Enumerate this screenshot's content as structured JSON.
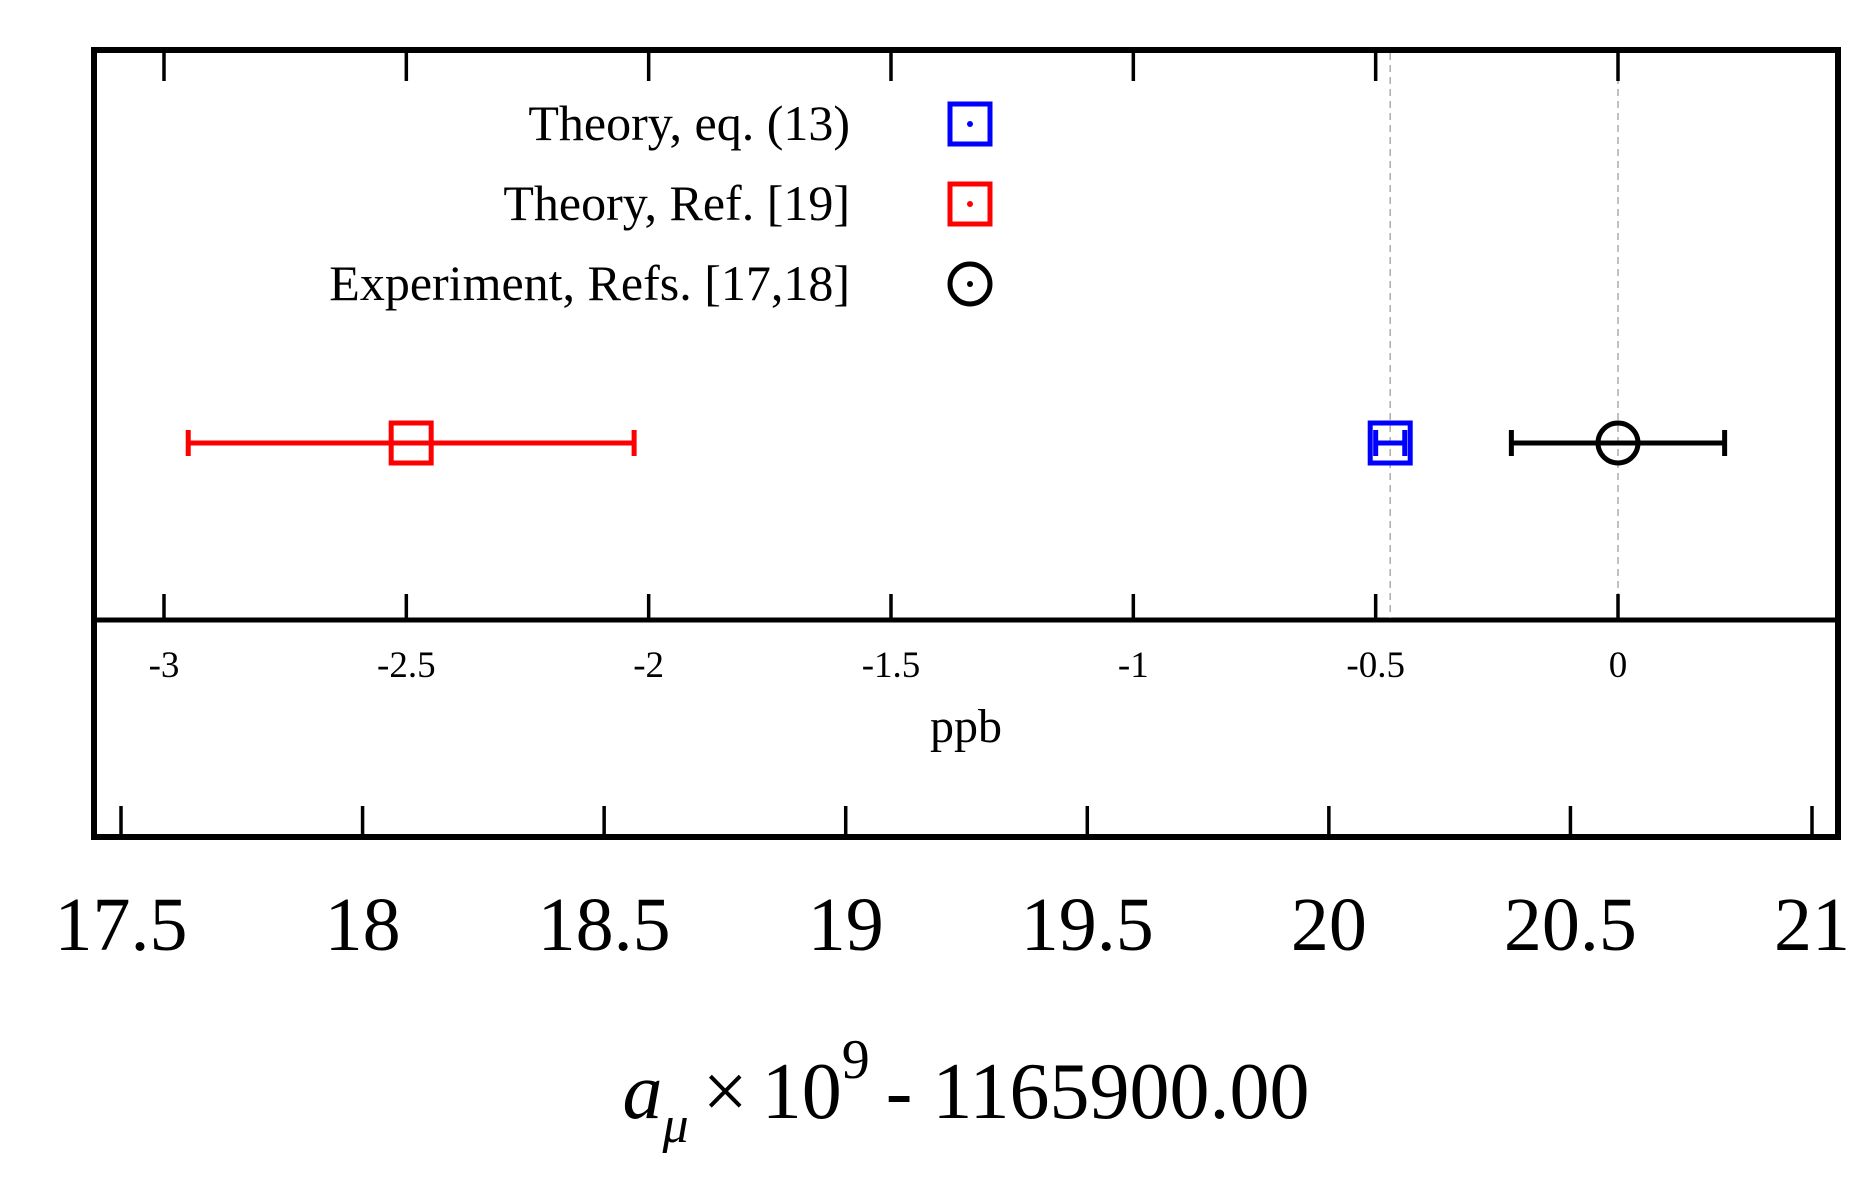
{
  "chart_data": {
    "type": "scatter",
    "orientation": "horizontal error bars",
    "legend_placement": "top-center",
    "grid": false,
    "reference_lines": [
      {
        "x_ppb": -0.47,
        "style": "dashed",
        "color": "#b0b0b0"
      },
      {
        "x_ppb": 0.0,
        "style": "dashed",
        "color": "#b0b0b0"
      }
    ],
    "ppb_axis": {
      "label": "ppb",
      "range": [
        -3.05,
        0.45
      ],
      "ticks": [
        -3,
        -2.5,
        -2,
        -1.5,
        -1,
        -0.5,
        0
      ],
      "tick_labels": [
        "-3",
        "-2.5",
        "-2",
        "-1.5",
        "-1",
        "-0.5",
        "0"
      ]
    },
    "amu_axis": {
      "label_main": "a",
      "label_subscript": "μ",
      "label_times": "×",
      "label_base": "10",
      "label_exponent": "9",
      "label_offset": "- 1165900.00",
      "range": [
        17.44,
        21.06
      ],
      "ticks": [
        17.5,
        18,
        18.5,
        19,
        19.5,
        20,
        20.5,
        21
      ],
      "tick_labels": [
        "17.5",
        "18",
        "18.5",
        "19",
        "19.5",
        "20",
        "20.5",
        "21"
      ]
    },
    "series": [
      {
        "name": "Theory, eq. (13)",
        "x_ppb": -0.47,
        "err_low": -0.5,
        "err_high": -0.44,
        "marker": "square",
        "color": "#0000ff"
      },
      {
        "name": "Theory, Ref. [19]",
        "x_ppb": -2.49,
        "err_low": -2.95,
        "err_high": -2.03,
        "marker": "square",
        "color": "#ff0000"
      },
      {
        "name": "Experiment, Refs. [17,18]",
        "x_ppb": 0.0,
        "err_low": -0.22,
        "err_high": 0.22,
        "marker": "circle",
        "color": "#000000"
      }
    ]
  }
}
